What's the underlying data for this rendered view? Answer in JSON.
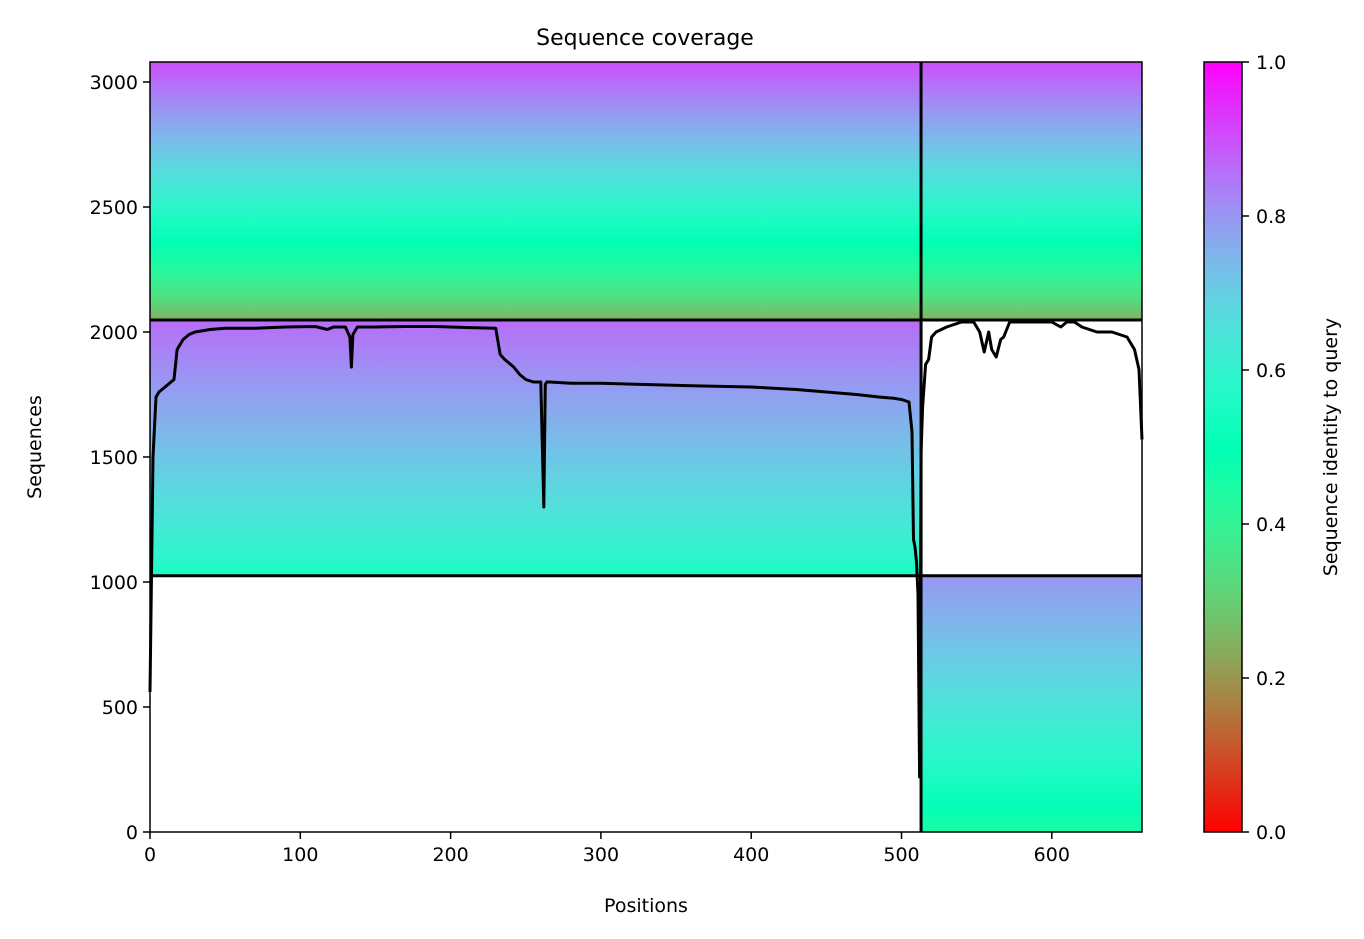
{
  "chart_data": {
    "type": "heatmap",
    "title": "Sequence coverage",
    "xlabel": "Positions",
    "ylabel": "Sequences",
    "xlim": [
      0,
      660
    ],
    "ylim": [
      0,
      3080
    ],
    "xticks": [
      0,
      100,
      200,
      300,
      400,
      500,
      600
    ],
    "yticks": [
      0,
      500,
      1000,
      1500,
      2000,
      2500,
      3000
    ],
    "grid": false,
    "block_boundaries": {
      "vertical_x": 513,
      "horizontal_y_left": 1025,
      "horizontal_y_full": 2048
    },
    "coverage_blocks": [
      {
        "name": "A",
        "x": [
          0,
          513
        ],
        "y": [
          2048,
          3080
        ],
        "identity_bottom": 0.25,
        "identity_top": 0.9
      },
      {
        "name": "B",
        "x": [
          513,
          660
        ],
        "y": [
          2048,
          3080
        ],
        "identity_bottom": 0.25,
        "identity_top": 0.9
      },
      {
        "name": "C",
        "x": [
          0,
          513
        ],
        "y": [
          1025,
          2048
        ],
        "identity_bottom": 0.55,
        "identity_top": 0.86
      },
      {
        "name": "D",
        "x": [
          513,
          660
        ],
        "y": [
          0,
          1025
        ],
        "identity_bottom": 0.45,
        "identity_top": 0.8
      }
    ],
    "coverage_line": {
      "x": [
        0,
        2,
        4,
        6,
        10,
        14,
        16,
        18,
        22,
        26,
        30,
        40,
        50,
        70,
        90,
        110,
        118,
        122,
        130,
        133,
        134,
        135,
        138,
        150,
        170,
        190,
        210,
        230,
        233,
        236,
        242,
        246,
        250,
        255,
        260,
        262,
        263,
        264,
        266,
        280,
        300,
        330,
        360,
        400,
        430,
        450,
        470,
        485,
        495,
        500,
        505,
        507,
        508,
        509,
        510,
        511,
        512,
        513,
        514,
        516,
        518,
        520,
        523,
        530,
        540,
        548,
        552,
        555,
        558,
        560,
        563,
        566,
        568,
        572,
        580,
        600,
        606,
        610,
        615,
        620,
        630,
        640,
        650,
        655,
        658,
        660
      ],
      "y": [
        560,
        1500,
        1740,
        1760,
        1780,
        1800,
        1810,
        1930,
        1970,
        1990,
        2000,
        2010,
        2015,
        2015,
        2020,
        2022,
        2010,
        2020,
        2020,
        1980,
        1860,
        1990,
        2020,
        2020,
        2022,
        2022,
        2018,
        2015,
        1910,
        1890,
        1860,
        1830,
        1810,
        1800,
        1800,
        1300,
        1790,
        1800,
        1800,
        1795,
        1795,
        1790,
        1785,
        1780,
        1770,
        1760,
        1750,
        1740,
        1735,
        1730,
        1720,
        1600,
        1170,
        1140,
        1080,
        950,
        220,
        1520,
        1700,
        1870,
        1890,
        1980,
        2000,
        2020,
        2040,
        2040,
        2000,
        1920,
        2000,
        1930,
        1900,
        1970,
        1980,
        2040,
        2040,
        2040,
        2020,
        2040,
        2040,
        2020,
        2000,
        2000,
        1980,
        1930,
        1850,
        1570
      ]
    },
    "colorbar": {
      "label": "Sequence identity to query",
      "range": [
        0,
        1
      ],
      "ticks": [
        "0.0",
        "0.2",
        "0.4",
        "0.6",
        "0.8",
        "1.0"
      ],
      "colormap": "rainbow_r"
    }
  }
}
